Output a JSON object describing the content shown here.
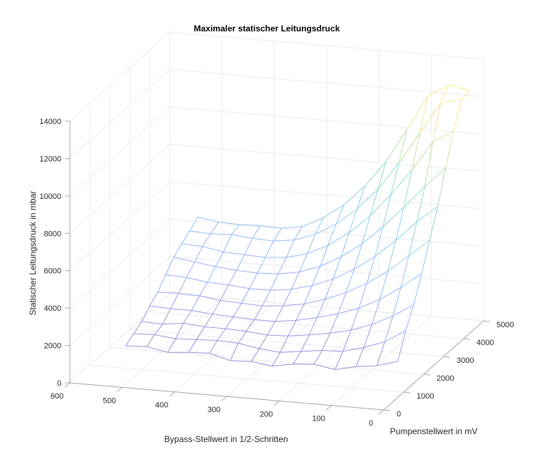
{
  "chart_data": {
    "type": "mesh3d",
    "title": "Maximaler statischer Leitungsdruck",
    "xlabel": "Bypass-Stellwert in 1/2-Schritten",
    "ylabel": "Pumpenstellwert in mV",
    "zlabel": "Statischer Leitungsdruck in mbar",
    "xlim": [
      0,
      600
    ],
    "ylim": [
      0,
      5000
    ],
    "zlim": [
      0,
      14000
    ],
    "x_ticks": [
      600,
      500,
      400,
      300,
      200,
      100,
      0
    ],
    "y_ticks": [
      0,
      1000,
      2000,
      3000,
      4000,
      5000
    ],
    "z_ticks": [
      0,
      2000,
      4000,
      6000,
      8000,
      10000,
      12000,
      14000
    ],
    "grid": true,
    "colormap": "parula",
    "x": [
      520,
      480,
      440,
      400,
      360,
      320,
      280,
      240,
      200,
      160,
      120,
      80,
      40,
      0
    ],
    "y": [
      700,
      1100,
      1500,
      1900,
      2300,
      2700,
      3100,
      3500,
      3900,
      4300
    ],
    "z": [
      [
        1510,
        1560,
        1350,
        1450,
        1500,
        1200,
        1250,
        1100,
        1300,
        1400,
        1200,
        1450,
        1600,
        1930
      ],
      [
        1780,
        1820,
        1700,
        1750,
        1800,
        1750,
        1550,
        1450,
        1600,
        1750,
        1800,
        2100,
        2500,
        3200
      ],
      [
        2050,
        2000,
        2150,
        2050,
        2050,
        2000,
        1900,
        1950,
        2100,
        2300,
        2550,
        2950,
        3500,
        4200
      ],
      [
        2500,
        2450,
        2450,
        2350,
        2300,
        2250,
        2250,
        2400,
        2650,
        2950,
        3350,
        3900,
        4650,
        5500
      ],
      [
        2850,
        2900,
        2850,
        2700,
        2650,
        2600,
        2700,
        2900,
        3250,
        3700,
        4300,
        5050,
        5950,
        6900
      ],
      [
        3400,
        3350,
        3200,
        3150,
        3050,
        3050,
        3200,
        3500,
        3950,
        4550,
        5350,
        6300,
        7400,
        8300
      ],
      [
        3950,
        3800,
        3650,
        3550,
        3500,
        3550,
        3750,
        4150,
        4750,
        5550,
        6550,
        7700,
        8900,
        10000
      ],
      [
        4300,
        4250,
        4050,
        4000,
        3950,
        4050,
        4350,
        4900,
        5650,
        6650,
        7900,
        9300,
        10900,
        11600
      ],
      [
        4600,
        4550,
        4600,
        4500,
        4450,
        4600,
        5000,
        5650,
        6550,
        7700,
        9200,
        10900,
        12600,
        12900
      ],
      [
        4950,
        4800,
        4750,
        4800,
        4750,
        4950,
        5500,
        6300,
        7400,
        8800,
        10600,
        12500,
        13200,
        13000
      ]
    ]
  }
}
